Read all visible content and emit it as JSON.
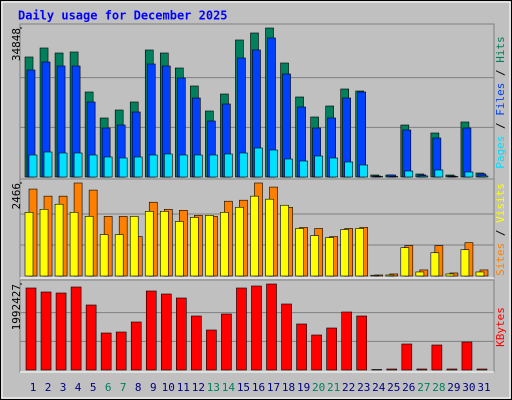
{
  "title": "Daily usage for December 2025",
  "categories": [
    "1",
    "2",
    "3",
    "4",
    "5",
    "6",
    "7",
    "8",
    "9",
    "10",
    "11",
    "12",
    "13",
    "14",
    "15",
    "16",
    "17",
    "18",
    "19",
    "20",
    "21",
    "22",
    "23",
    "24",
    "25",
    "26",
    "27",
    "28",
    "29",
    "30",
    "31"
  ],
  "highlighted": [
    5,
    6,
    12,
    13,
    19,
    20,
    26,
    27
  ],
  "highlight_color": "#00805c",
  "category_color": "#000080",
  "legend_separator": " / ",
  "chart_data": [
    {
      "type": "bar",
      "ylim": [
        0,
        34848
      ],
      "yticks": [
        34848
      ],
      "grid_lines": 3,
      "legend_order": [
        2,
        1,
        0
      ],
      "series": [
        {
          "name": "Hits",
          "color": "#00805c",
          "values": [
            28068,
            30173,
            29004,
            29238,
            19882,
            13800,
            15671,
            17543,
            29706,
            29004,
            25495,
            21285,
            15437,
            19414,
            32044,
            33682,
            34848,
            26665,
            18712,
            14034,
            16607,
            20583,
            20115,
            468,
            468,
            12163,
            702,
            10292,
            468,
            12865,
            936
          ]
        },
        {
          "name": "Files",
          "color": "#0040ff",
          "values": [
            25027,
            26899,
            25963,
            25963,
            17543,
            11461,
            12163,
            15204,
            26431,
            25963,
            23156,
            18478,
            13098,
            17075,
            27834,
            29706,
            32512,
            24092,
            16373,
            11461,
            13800,
            18478,
            19882,
            234,
            468,
            10993,
            468,
            9122,
            234,
            11461,
            702
          ]
        },
        {
          "name": "Pages",
          "color": "#00e0ff",
          "values": [
            5146,
            5848,
            5614,
            5614,
            5146,
            4678,
            4444,
            4678,
            5146,
            5380,
            5146,
            5146,
            5146,
            5380,
            5614,
            6783,
            6315,
            4210,
            3742,
            4912,
            4444,
            3509,
            2807,
            117,
            117,
            1403,
            234,
            1637,
            117,
            1170,
            234
          ]
        }
      ]
    },
    {
      "type": "bar",
      "ylim": [
        0,
        2466
      ],
      "yticks": [
        2466
      ],
      "grid_lines": 3,
      "legend_order": [
        0,
        1
      ],
      "series": [
        {
          "name": "Sites",
          "color": "#ff8000",
          "values": [
            2305,
            2117,
            2117,
            2466,
            2278,
            1581,
            1581,
            1045,
            1956,
            1769,
            1742,
            1608,
            1581,
            1983,
            2010,
            2466,
            2358,
            1822,
            1286,
            1260,
            1045,
            1260,
            1286,
            27,
            54,
            804,
            161,
            804,
            80,
            884,
            161
          ]
        },
        {
          "name": "Visits",
          "color": "#ffff00",
          "values": [
            1688,
            1769,
            1903,
            1688,
            1581,
            1099,
            1099,
            1581,
            1715,
            1715,
            1447,
            1554,
            1608,
            1688,
            1822,
            2117,
            2037,
            1876,
            1260,
            1072,
            1018,
            1233,
            1260,
            20,
            27,
            750,
            107,
            616,
            54,
            697,
            107
          ]
        }
      ]
    },
    {
      "type": "bar",
      "ylim": [
        0,
        1992427
      ],
      "yticks": [
        1992427
      ],
      "grid_lines": 3,
      "legend_order": [
        0
      ],
      "series": [
        {
          "name": "KBytes",
          "color": "#ff0000",
          "values": [
            1899776,
            1807104,
            1783936,
            1922944,
            1505920,
            857216,
            880384,
            1112064,
            1830272,
            1760768,
            1668096,
            1251072,
            926720,
            1297408,
            1899776,
            1946112,
            1992427,
            1529088,
            1065728,
            810880,
            973056,
            1343744,
            1251072,
            11584,
            23168,
            602368,
            23168,
            579200,
            23168,
            648704,
            23168
          ]
        }
      ]
    }
  ]
}
